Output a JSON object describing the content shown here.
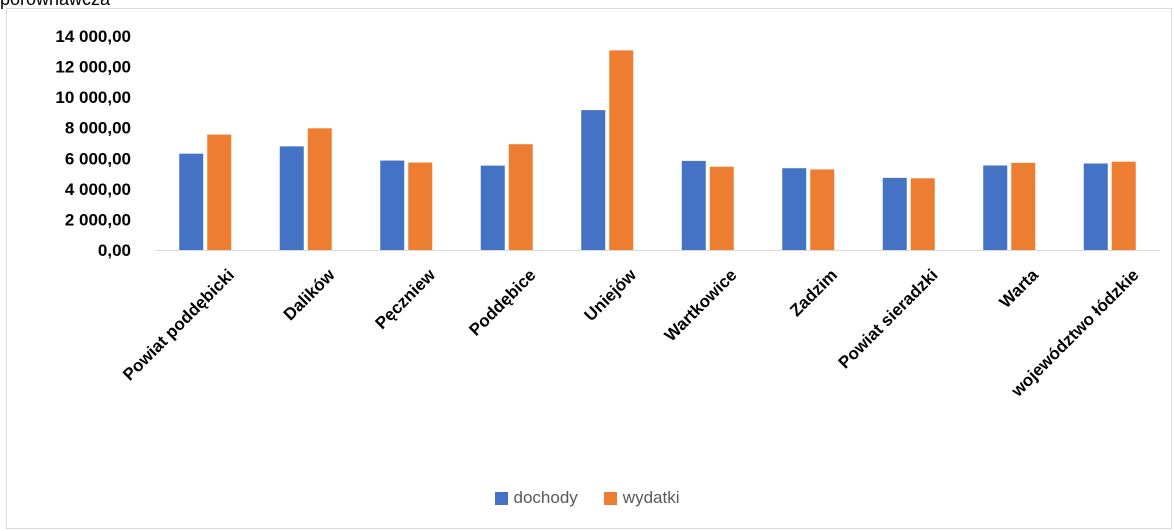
{
  "caption": "porównawcza",
  "chart_data": {
    "type": "bar",
    "categories": [
      "Powiat poddębicki",
      "Dalików",
      "Pęczniew",
      "Poddębice",
      "Uniejów",
      "Wartkowice",
      "Zadzim",
      "Powiat sieradzki",
      "Warta",
      "województwo łódzkie"
    ],
    "series": [
      {
        "name": "dochody",
        "color": "#4472C4",
        "values": [
          6300,
          6780,
          5850,
          5520,
          9150,
          5830,
          5350,
          4720,
          5530,
          5660
        ]
      },
      {
        "name": "wydatki",
        "color": "#ED7D31",
        "values": [
          7550,
          7960,
          5720,
          6920,
          13060,
          5450,
          5270,
          4690,
          5700,
          5780
        ]
      }
    ],
    "ylim": [
      0,
      14000
    ],
    "yticks": [
      "0,00",
      "2 000,00",
      "4 000,00",
      "6 000,00",
      "8 000,00",
      "10 000,00",
      "12 000,00",
      "14 000,00"
    ],
    "grid": false,
    "legend_position": "bottom"
  }
}
